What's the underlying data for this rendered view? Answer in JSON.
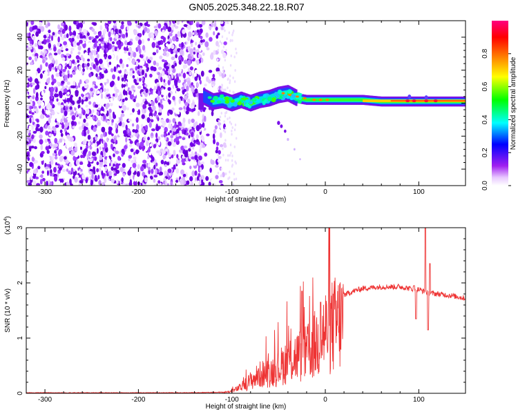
{
  "title": "GN05.2025.348.22.18.R07",
  "chart_data": [
    {
      "type": "heatmap",
      "xlabel": "Height of straight line (km)",
      "ylabel": "Frequency (Hz)",
      "xlim": [
        -320,
        150
      ],
      "ylim": [
        -50,
        50
      ],
      "xticks": [
        -300,
        -200,
        -100,
        0,
        100
      ],
      "yticks": [
        -40,
        -20,
        0,
        20,
        40
      ],
      "colorbar": {
        "label": "Normalized spectral amplitude",
        "range": [
          0,
          1
        ],
        "ticks": [
          "0.0",
          "0.2",
          "0.4",
          "0.6",
          "0.8"
        ],
        "colors": [
          "#ffffff",
          "#a020f0",
          "#0000ff",
          "#00ffff",
          "#00ff00",
          "#ffff00",
          "#ff8000",
          "#ff0000",
          "#ff0080"
        ]
      },
      "features": {
        "noise_region_x": [
          -320,
          -115
        ],
        "trace_center_hz": [
          [
            -130,
            4
          ],
          [
            -120,
            1
          ],
          [
            -110,
            2
          ],
          [
            -100,
            0
          ],
          [
            -90,
            2
          ],
          [
            -80,
            0
          ],
          [
            -70,
            2
          ],
          [
            -60,
            3
          ],
          [
            -50,
            5
          ],
          [
            -40,
            6
          ],
          [
            -30,
            3
          ],
          [
            -20,
            2
          ],
          [
            -10,
            2
          ],
          [
            0,
            2
          ],
          [
            10,
            2
          ],
          [
            20,
            2
          ],
          [
            40,
            2
          ],
          [
            60,
            1
          ],
          [
            80,
            1
          ],
          [
            100,
            1
          ],
          [
            120,
            1
          ],
          [
            150,
            1
          ]
        ],
        "branch_points": [
          [
            -50,
            -12
          ],
          [
            -47,
            -14
          ],
          [
            -43,
            -17
          ],
          [
            -40,
            -22
          ],
          [
            -33,
            -28
          ],
          [
            -27,
            -34
          ]
        ]
      }
    },
    {
      "type": "line",
      "xlabel": "Height of straight line (km)",
      "ylabel": "SNR (10 * v/v)",
      "y_multiplier": "(x10",
      "y_multiplier_exp": "4",
      "y_multiplier_close": ")",
      "xlim": [
        -320,
        150
      ],
      "ylim": [
        0,
        3
      ],
      "xticks": [
        -300,
        -200,
        -100,
        0,
        100
      ],
      "yticks": [
        0,
        1,
        2,
        3
      ],
      "color": "#ee3333",
      "envelope": [
        [
          -320,
          0.01
        ],
        [
          -150,
          0.01
        ],
        [
          -110,
          0.02
        ],
        [
          -100,
          0.05
        ],
        [
          -90,
          0.15
        ],
        [
          -80,
          0.3
        ],
        [
          -70,
          0.45
        ],
        [
          -60,
          0.5
        ],
        [
          -50,
          0.6
        ],
        [
          -40,
          0.8
        ],
        [
          -30,
          0.9
        ],
        [
          -20,
          0.95
        ],
        [
          -10,
          1.2
        ],
        [
          0,
          1.5
        ],
        [
          10,
          1.65
        ],
        [
          20,
          1.78
        ],
        [
          30,
          1.85
        ],
        [
          40,
          1.9
        ],
        [
          60,
          1.93
        ],
        [
          80,
          1.93
        ],
        [
          90,
          1.9
        ],
        [
          100,
          1.88
        ],
        [
          110,
          1.82
        ],
        [
          120,
          1.8
        ],
        [
          135,
          1.77
        ],
        [
          150,
          1.72
        ]
      ],
      "peaks": [
        [
          -25,
          1.85
        ],
        [
          -5,
          1.65
        ],
        [
          95,
          1.95
        ],
        [
          97,
          1.35
        ],
        [
          107,
          3.0
        ],
        [
          110,
          1.15
        ],
        [
          112,
          2.35
        ]
      ]
    }
  ]
}
